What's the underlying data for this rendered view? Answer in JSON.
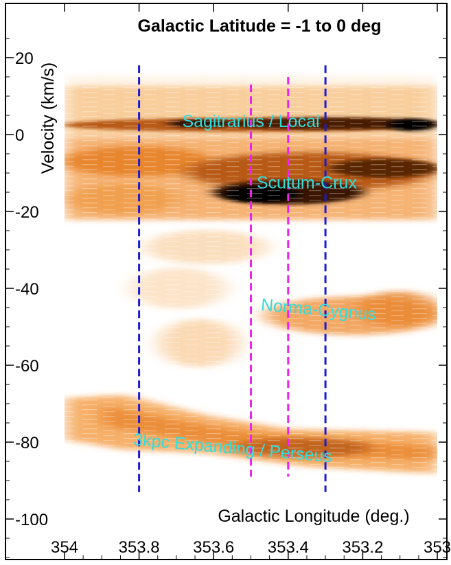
{
  "chart_data": {
    "type": "heatmap",
    "title": "Galactic Latitude = -1 to 0 deg",
    "xlabel": "Galactic Longitude (deg.)",
    "ylabel": "Velocity (km/s)",
    "xlim": [
      354,
      353
    ],
    "ylim": [
      -110,
      30
    ],
    "x_ticks": [
      "354",
      "353.8",
      "353.6",
      "353.4",
      "353.2",
      "353"
    ],
    "x_tick_values": [
      354,
      353.8,
      353.6,
      353.4,
      353.2,
      353
    ],
    "y_ticks": [
      "20",
      "0",
      "-20",
      "-40",
      "-60",
      "-80",
      "-100"
    ],
    "y_tick_values": [
      20,
      0,
      -20,
      -40,
      -60,
      -80,
      -100
    ],
    "grid": false,
    "colormap": [
      "#ffffff",
      "#fde3c2",
      "#f8b572",
      "#e8862e",
      "#b85a12",
      "#4a1e05",
      "#000000"
    ],
    "emission_features": [
      {
        "label": "Sagitrarius / Local",
        "label_lon": 353.5,
        "label_vel": 2,
        "label_rotate": 0
      },
      {
        "label": "Scutum-Crux",
        "label_lon": 353.35,
        "label_vel": -14,
        "label_rotate": 0
      },
      {
        "label": "Norma-Cygnus",
        "label_lon": 353.32,
        "label_vel": -47,
        "label_rotate": 5
      },
      {
        "label": "3kpc Expanding / Perseus",
        "label_lon": 353.55,
        "label_vel": -83,
        "label_rotate": 5
      }
    ],
    "vertical_lines": [
      {
        "lon": 353.8,
        "vel_from": 18,
        "vel_to": -93,
        "color": "#1a1ad6"
      },
      {
        "lon": 353.5,
        "vel_from": 13,
        "vel_to": -89,
        "color": "#ee22ee"
      },
      {
        "lon": 353.4,
        "vel_from": 15,
        "vel_to": -89,
        "color": "#ee22ee"
      },
      {
        "lon": 353.3,
        "vel_from": 18,
        "vel_to": -93,
        "color": "#1a1ad6"
      }
    ],
    "label_color": "#33dddd"
  }
}
